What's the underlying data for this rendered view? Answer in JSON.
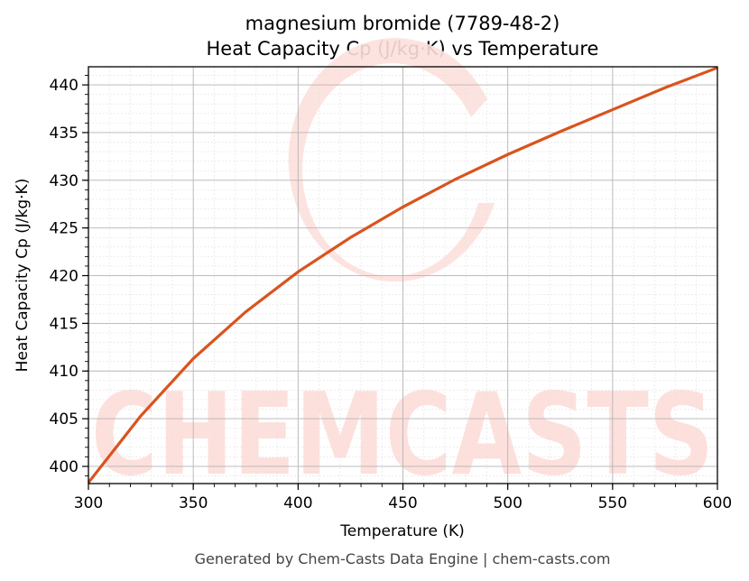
{
  "chart_data": {
    "type": "line",
    "title_line1": "magnesium bromide (7789-48-2)",
    "title_line2": "Heat Capacity Cp (J/kg·K) vs Temperature",
    "xlabel": "Temperature (K)",
    "ylabel": "Heat Capacity Cp (J/kg·K)",
    "xlim": [
      300,
      600
    ],
    "ylim": [
      398.2,
      441.9
    ],
    "x_ticks": [
      300,
      350,
      400,
      450,
      500,
      550,
      600
    ],
    "y_ticks": [
      400,
      405,
      410,
      415,
      420,
      425,
      430,
      435,
      440
    ],
    "grid": true,
    "line_color": "#d9541e",
    "series": [
      {
        "x": [
          300,
          325,
          350,
          375,
          400,
          425,
          450,
          475,
          500,
          525,
          550,
          575,
          600
        ],
        "values": [
          398.3,
          405.3,
          411.3,
          416.2,
          420.4,
          424.0,
          427.2,
          430.1,
          432.7,
          435.1,
          437.4,
          439.7,
          441.8
        ]
      }
    ]
  },
  "watermark": {
    "text": "CHEMCASTS",
    "color": "#fde0dc"
  },
  "footer": "Generated by Chem-Casts Data Engine | chem-casts.com"
}
